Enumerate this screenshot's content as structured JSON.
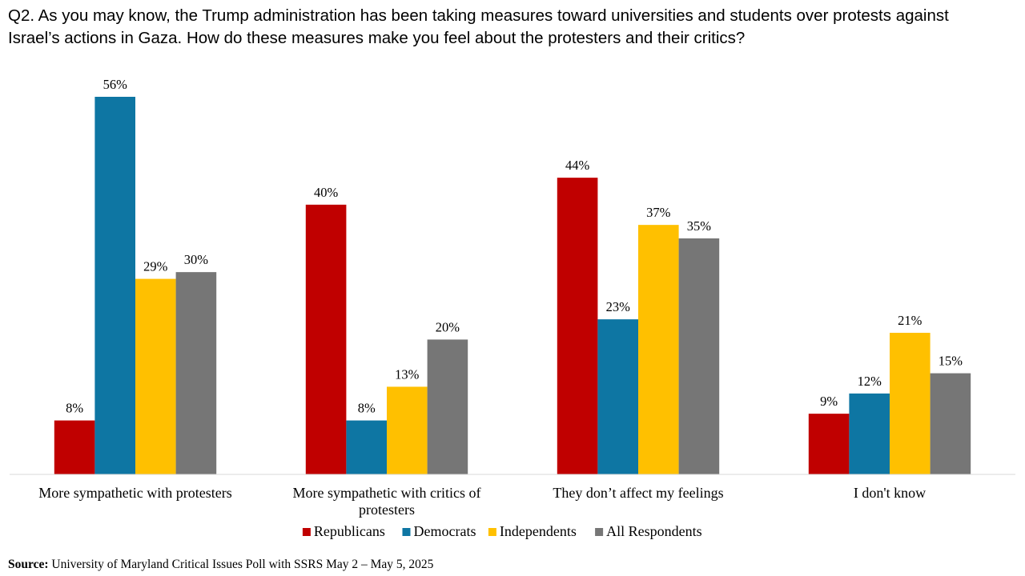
{
  "title": "Q2. As you may know, the Trump administration has been taking measures toward universities and students over protests against\nIsrael’s actions in Gaza. How do these measures make you feel about the protesters and their critics?",
  "source_label": "Source:",
  "source_text": " University of Maryland Critical Issues Poll with SSRS May 2 – May 5, 2025",
  "chart_data": {
    "type": "bar",
    "categories": [
      [
        "More sympathetic with protesters"
      ],
      [
        "More sympathetic with critics of",
        "protesters"
      ],
      [
        "They don’t affect my feelings"
      ],
      [
        "I don't know"
      ]
    ],
    "series": [
      {
        "name": "Republicans",
        "color": "#C00000",
        "values": [
          8,
          40,
          44,
          9
        ]
      },
      {
        "name": "Democrats",
        "color": "#0E76A3",
        "values": [
          56,
          8,
          23,
          12
        ]
      },
      {
        "name": "Independents",
        "color": "#FFC000",
        "values": [
          29,
          13,
          37,
          21
        ]
      },
      {
        "name": "All Respondents",
        "color": "#767676",
        "values": [
          30,
          20,
          35,
          15
        ]
      }
    ],
    "value_suffix": "%",
    "ylim": [
      0,
      60
    ],
    "legend_position": "bottom",
    "grid": false
  }
}
